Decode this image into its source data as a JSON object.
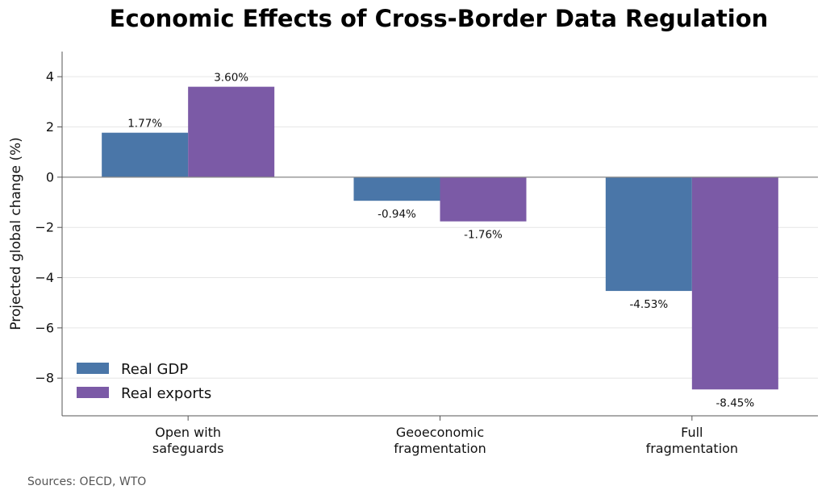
{
  "chart_data": {
    "type": "bar",
    "title": "Economic Effects of Cross-Border Data Regulation",
    "xlabel": "",
    "ylabel": "Projected global change (%)",
    "categories": [
      "Open with\nsafeguards",
      "Geoeconomic\nfragmentation",
      "Full\nfragmentation"
    ],
    "series": [
      {
        "name": "Real GDP",
        "values": [
          1.77,
          -0.94,
          -4.53
        ],
        "color": "#4a76a8",
        "labels": [
          "1.77%",
          "-0.94%",
          "-4.53%"
        ]
      },
      {
        "name": "Real exports",
        "values": [
          3.6,
          -1.76,
          -8.45
        ],
        "color": "#7b5aa6",
        "labels": [
          "3.60%",
          "-1.76%",
          "-8.45%"
        ]
      }
    ],
    "ylim": [
      -9.5,
      5.0
    ],
    "yticks": [
      -8,
      -6,
      -4,
      -2,
      0,
      2,
      4
    ],
    "ytick_labels": [
      "−8",
      "−6",
      "−4",
      "−2",
      "0",
      "2",
      "4"
    ],
    "grid": true,
    "legend": "lower-left",
    "source": "Sources: OECD, WTO"
  }
}
